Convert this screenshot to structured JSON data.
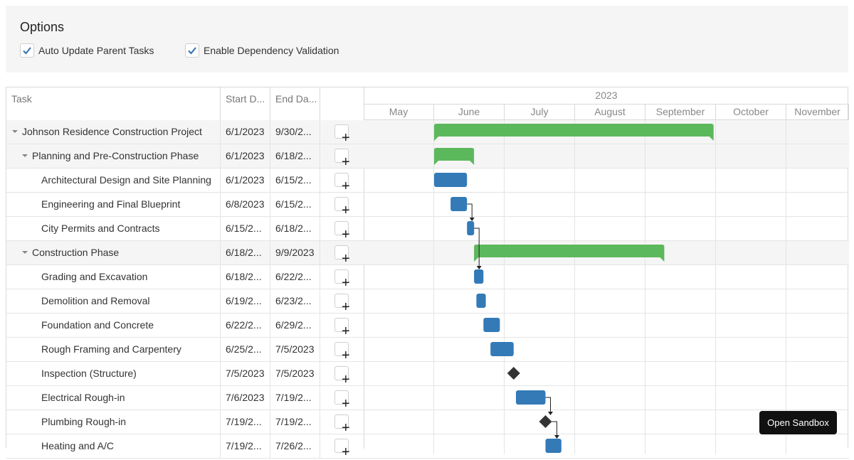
{
  "options": {
    "title": "Options",
    "auto_update": {
      "label": "Auto Update Parent Tasks",
      "checked": true
    },
    "dependency_validation": {
      "label": "Enable Dependency Validation",
      "checked": true
    }
  },
  "grid": {
    "columns": {
      "task": "Task",
      "start": "Start D...",
      "end": "End Da..."
    },
    "rows": [
      {
        "name": "Johnson Residence Construction Project",
        "start": "6/1/2023",
        "end": "9/30/2...",
        "level": 0,
        "parent": true
      },
      {
        "name": "Planning and Pre-Construction Phase",
        "start": "6/1/2023",
        "end": "6/18/2...",
        "level": 1,
        "parent": true
      },
      {
        "name": "Architectural Design and Site Planning",
        "start": "6/1/2023",
        "end": "6/15/2...",
        "level": 2,
        "parent": false
      },
      {
        "name": "Engineering and Final Blueprint",
        "start": "6/8/2023",
        "end": "6/15/2...",
        "level": 2,
        "parent": false
      },
      {
        "name": "City Permits and Contracts",
        "start": "6/15/2...",
        "end": "6/18/2...",
        "level": 2,
        "parent": false
      },
      {
        "name": "Construction Phase",
        "start": "6/18/2...",
        "end": "9/9/2023",
        "level": 1,
        "parent": true
      },
      {
        "name": "Grading and Excavation",
        "start": "6/18/2...",
        "end": "6/22/2...",
        "level": 2,
        "parent": false
      },
      {
        "name": "Demolition and Removal",
        "start": "6/19/2...",
        "end": "6/23/2...",
        "level": 2,
        "parent": false
      },
      {
        "name": "Foundation and Concrete",
        "start": "6/22/2...",
        "end": "6/29/2...",
        "level": 2,
        "parent": false
      },
      {
        "name": "Rough Framing and Carpentery",
        "start": "6/25/2...",
        "end": "7/5/2023",
        "level": 2,
        "parent": false
      },
      {
        "name": "Inspection (Structure)",
        "start": "7/5/2023",
        "end": "7/5/2023",
        "level": 2,
        "parent": false
      },
      {
        "name": "Electrical Rough-in",
        "start": "7/6/2023",
        "end": "7/19/2...",
        "level": 2,
        "parent": false
      },
      {
        "name": "Plumbing Rough-in",
        "start": "7/19/2...",
        "end": "7/19/2...",
        "level": 2,
        "parent": false
      },
      {
        "name": "Heating and A/C",
        "start": "7/19/2...",
        "end": "7/26/2...",
        "level": 2,
        "parent": false
      }
    ]
  },
  "timeline": {
    "year": "2023",
    "months": [
      "May",
      "June",
      "July",
      "August",
      "September",
      "October",
      "November"
    ],
    "tasks": [
      {
        "type": "summary",
        "start": "2023-06-01",
        "end": "2023-09-30"
      },
      {
        "type": "summary",
        "start": "2023-06-01",
        "end": "2023-06-18"
      },
      {
        "type": "task",
        "start": "2023-06-01",
        "end": "2023-06-15"
      },
      {
        "type": "task",
        "start": "2023-06-08",
        "end": "2023-06-15"
      },
      {
        "type": "task",
        "start": "2023-06-15",
        "end": "2023-06-18"
      },
      {
        "type": "summary",
        "start": "2023-06-18",
        "end": "2023-09-09"
      },
      {
        "type": "task",
        "start": "2023-06-18",
        "end": "2023-06-22"
      },
      {
        "type": "task",
        "start": "2023-06-19",
        "end": "2023-06-23"
      },
      {
        "type": "task",
        "start": "2023-06-22",
        "end": "2023-06-29"
      },
      {
        "type": "task",
        "start": "2023-06-25",
        "end": "2023-07-05"
      },
      {
        "type": "milestone",
        "start": "2023-07-05",
        "end": "2023-07-05"
      },
      {
        "type": "task",
        "start": "2023-07-06",
        "end": "2023-07-19"
      },
      {
        "type": "milestone",
        "start": "2023-07-19",
        "end": "2023-07-19"
      },
      {
        "type": "task",
        "start": "2023-07-19",
        "end": "2023-07-26"
      }
    ],
    "dependencies": [
      [
        3,
        4
      ],
      [
        4,
        6
      ],
      [
        11,
        12
      ],
      [
        12,
        13
      ]
    ],
    "colors": {
      "summary": "#5cb85c",
      "task": "#337ab7",
      "milestone": "#333333"
    }
  },
  "sandbox_label": "Open Sandbox"
}
